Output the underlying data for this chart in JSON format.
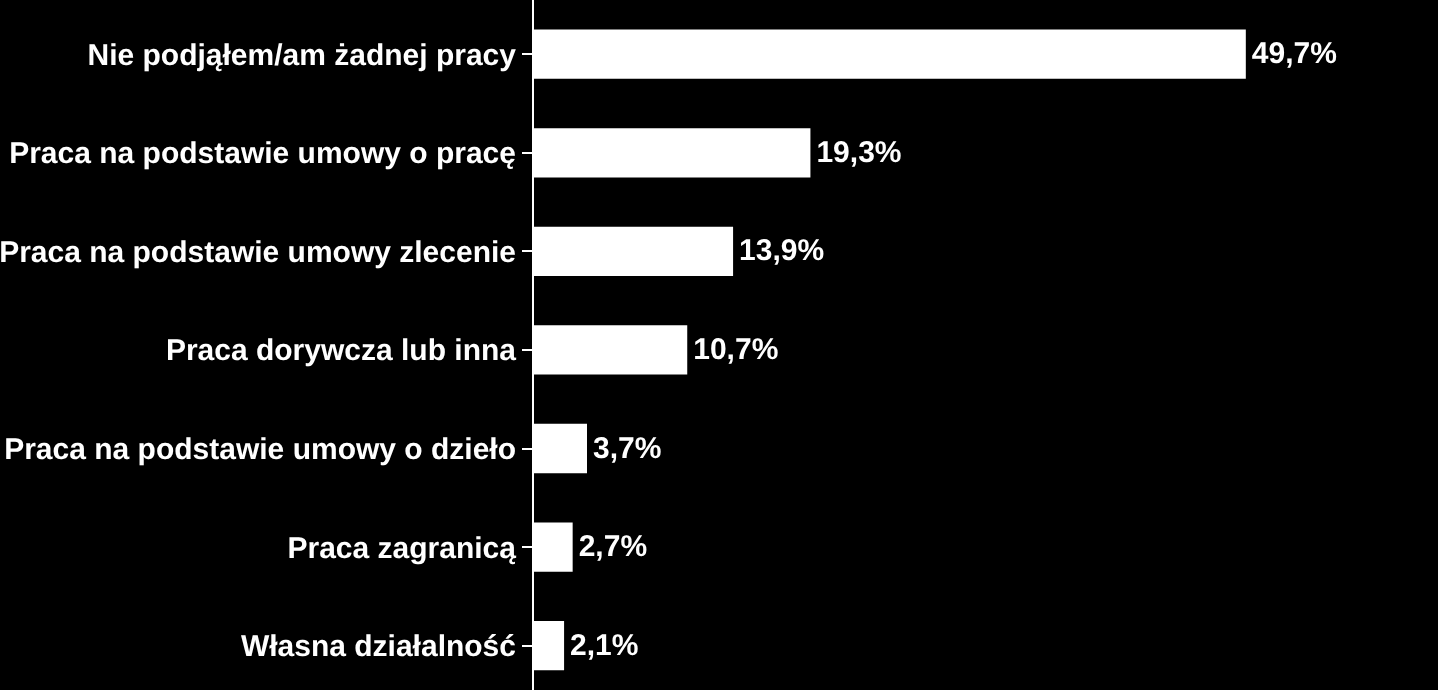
{
  "chart_data": {
    "type": "bar",
    "orientation": "horizontal",
    "categories": [
      "Nie podjąłem/am żadnej pracy",
      "Praca na podstawie umowy o pracę",
      "Praca na podstawie umowy zlecenie",
      "Praca dorywcza lub inna",
      "Praca na podstawie umowy o dzieło",
      "Praca zagranicą",
      "Własna działalność"
    ],
    "values": [
      49.7,
      19.3,
      13.9,
      10.7,
      3.7,
      2.7,
      2.1
    ],
    "value_labels": [
      "49,7%",
      "19,3%",
      "13,9%",
      "10,7%",
      "3,7%",
      "2,7%",
      "2,1%"
    ],
    "color": "#ffffff"
  }
}
